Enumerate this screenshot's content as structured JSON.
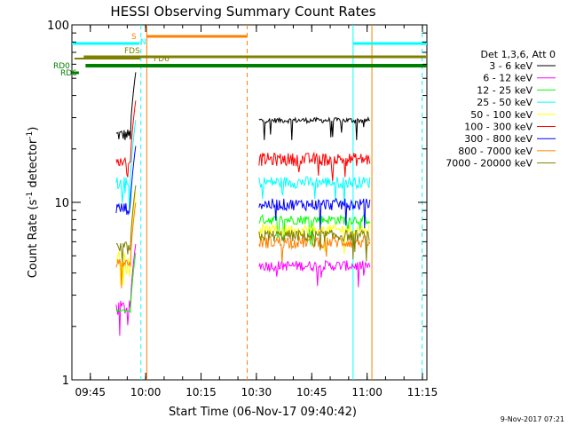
{
  "chart_data": {
    "type": "line",
    "title": "HESSI Observing Summary Count Rates",
    "xlabel": "Start Time (06-Nov-17 09:40:42)",
    "ylabel_main": "Count Rate (s",
    "ylabel_sup1": "-1",
    "ylabel_mid": " detector",
    "ylabel_sup2": "-1",
    "ylabel_end": ")",
    "yscale": "log",
    "ylim": [
      1,
      100
    ],
    "xlim_minutes": [
      -0.7,
      95.5
    ],
    "x_ticks": [
      {
        "m": 4.3,
        "label": "09:45"
      },
      {
        "m": 19.3,
        "label": "10:00"
      },
      {
        "m": 34.3,
        "label": "10:15"
      },
      {
        "m": 49.3,
        "label": "10:30"
      },
      {
        "m": 64.3,
        "label": "10:45"
      },
      {
        "m": 79.3,
        "label": "11:00"
      },
      {
        "m": 94.3,
        "label": "11:15"
      }
    ],
    "y_ticks": [
      {
        "v": 1,
        "label": "1"
      },
      {
        "v": 10,
        "label": "10"
      },
      {
        "v": 100,
        "label": "100"
      }
    ],
    "legend_header": "Det 1,3,6, Att 0",
    "series": [
      {
        "name": "3 - 6 keV",
        "color": "#000000",
        "seg1": [
          22,
          26
        ],
        "seg2": [
          28,
          30
        ]
      },
      {
        "name": "6 - 12 keV",
        "color": "#ff00ff",
        "seg1": [
          2.3,
          2.8
        ],
        "seg2": [
          4.1,
          4.7
        ]
      },
      {
        "name": "12 - 25 keV",
        "color": "#00ff00",
        "seg1": [
          2.4,
          2.5
        ],
        "seg2": [
          7.5,
          8.5
        ]
      },
      {
        "name": "25 - 50 keV",
        "color": "#00ffff",
        "seg1": [
          11,
          14
        ],
        "seg2": [
          12,
          14
        ]
      },
      {
        "name": "50 - 100 keV",
        "color": "#ffff00",
        "seg1": [
          4.5,
          5.5
        ],
        "seg2": [
          6.5,
          7.5
        ]
      },
      {
        "name": "100 - 300 keV",
        "color": "#ff0000",
        "seg1": [
          16,
          18
        ],
        "seg2": [
          16,
          19
        ]
      },
      {
        "name": "300 - 800 keV",
        "color": "#0000ff",
        "seg1": [
          8.5,
          10
        ],
        "seg2": [
          9,
          10.5
        ]
      },
      {
        "name": "800 - 7000 keV",
        "color": "#ff8000",
        "seg1": [
          4.3,
          4.8
        ],
        "seg2": [
          5.5,
          6.5
        ]
      },
      {
        "name": "7000 - 20000 keV",
        "color": "#808000",
        "seg1": [
          5,
          6
        ],
        "seg2": [
          6,
          7
        ]
      }
    ],
    "flag_bars": [
      {
        "label": "S",
        "color": "#ff8000"
      },
      {
        "label": "N",
        "color": "#00ffff"
      },
      {
        "label": "FDS",
        "color": "#808000"
      },
      {
        "label": "FD6",
        "color": "#808000"
      },
      {
        "label": "RD0",
        "color": "#008000"
      },
      {
        "label": "RD6",
        "color": "#008000"
      }
    ],
    "timestamp": "9-Nov-2017 07:21"
  }
}
